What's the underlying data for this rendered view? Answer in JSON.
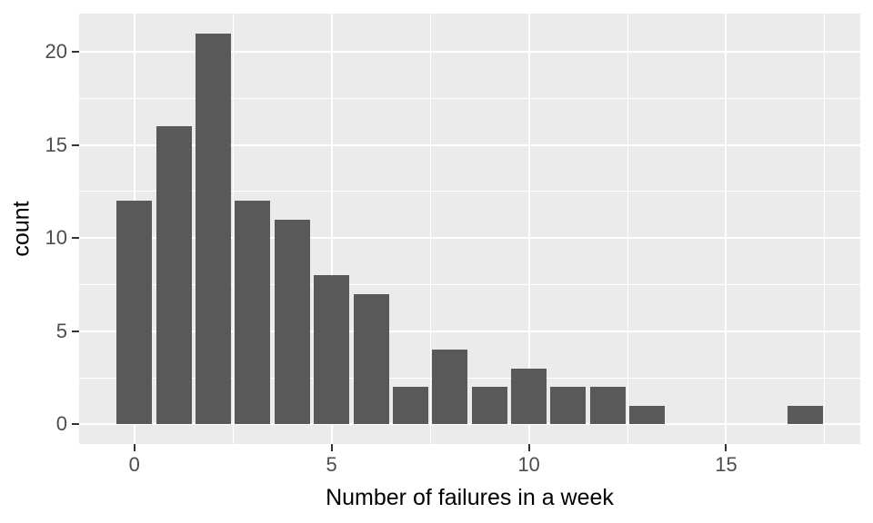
{
  "chart_data": {
    "type": "bar",
    "subtype": "histogram",
    "title": "",
    "xlabel": "Number of failures in a week",
    "ylabel": "count",
    "categories": [
      0,
      1,
      2,
      3,
      4,
      5,
      6,
      7,
      8,
      9,
      10,
      11,
      12,
      13,
      14,
      15,
      16,
      17
    ],
    "values": [
      12,
      16,
      21,
      12,
      11,
      8,
      7,
      2,
      4,
      2,
      3,
      2,
      2,
      1,
      0,
      0,
      0,
      1
    ],
    "bar_width": 0.9,
    "x_ticks": [
      0,
      5,
      10,
      15
    ],
    "y_ticks": [
      0,
      5,
      10,
      15,
      20
    ],
    "x_minor_gridlines": [
      2.5,
      7.5,
      12.5,
      17.5
    ],
    "y_minor_gridlines": [
      2.5,
      7.5,
      12.5,
      17.5
    ],
    "xlim": [
      -1.4,
      18.4
    ],
    "ylim": [
      -1.05,
      22.05
    ],
    "grid": true,
    "legend": "none",
    "colors": {
      "bar_fill": "#595959",
      "panel_background": "#EBEBEB",
      "gridline": "#FFFFFF",
      "tick_mark": "#333333",
      "tick_label": "#4D4D4D",
      "axis_title": "#000000",
      "figure_background": "#FFFFFF"
    }
  }
}
